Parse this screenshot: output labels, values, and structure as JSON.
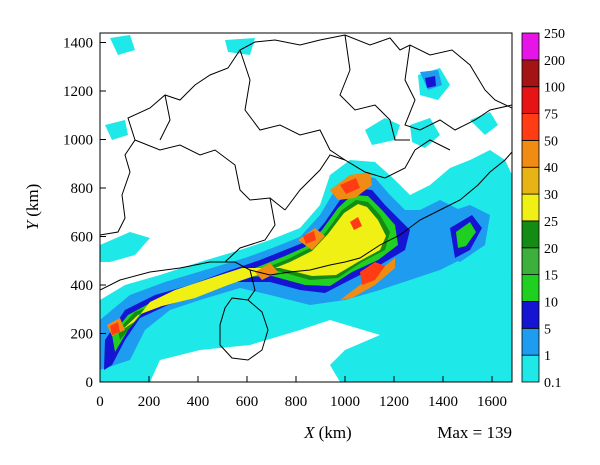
{
  "chart_data": {
    "type": "heatmap",
    "title": "",
    "xlabel": {
      "symbol": "X",
      "unit": "(km)"
    },
    "ylabel": {
      "symbol": "Y",
      "unit": "(km)"
    },
    "xlim": [
      0,
      1680
    ],
    "ylim": [
      0,
      1440
    ],
    "x_ticks": [
      "0",
      "200",
      "400",
      "600",
      "800",
      "1000",
      "1200",
      "1400",
      "1600"
    ],
    "y_ticks": [
      "0",
      "200",
      "400",
      "600",
      "800",
      "1000",
      "1200",
      "1400"
    ],
    "max_annotation": "Max = 139",
    "colorbar": {
      "levels": [
        "0.1",
        "1",
        "5",
        "10",
        "15",
        "20",
        "25",
        "30",
        "40",
        "50",
        "75",
        "100",
        "200",
        "250"
      ],
      "colors": [
        "#1ee8e8",
        "#1e9cf0",
        "#1414d2",
        "#20d020",
        "#3caf3c",
        "#148c14",
        "#f0f014",
        "#e6b414",
        "#f08c14",
        "#ff3c14",
        "#e61414",
        "#a51414",
        "#e614e6"
      ]
    },
    "grid": false
  }
}
